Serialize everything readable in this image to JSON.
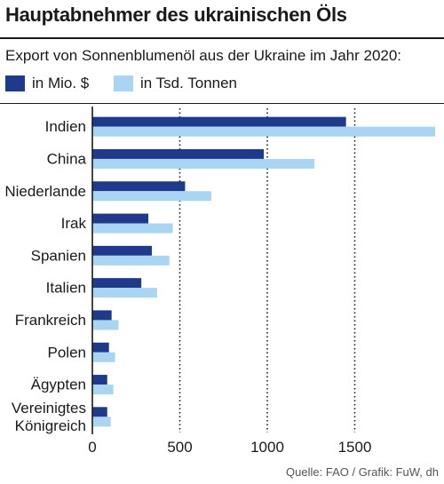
{
  "header": {
    "title": "Hauptabnehmer des ukrainischen Öls",
    "subtitle": "Export von Sonnenblumenöl aus der Ukraine im Jahr 2020:"
  },
  "source": "Quelle: FAO / Grafik: FuW, dh",
  "colors": {
    "dark": "#1f3a8a",
    "light": "#a9d5f2",
    "grid": "#1a1a1a"
  },
  "chart_data": {
    "type": "bar",
    "orientation": "horizontal",
    "title": "Hauptabnehmer des ukrainischen Öls",
    "subtitle": "Export von Sonnenblumenöl aus der Ukraine im Jahr 2020:",
    "categories": [
      "Indien",
      "China",
      "Niederlande",
      "Irak",
      "Spanien",
      "Italien",
      "Frankreich",
      "Polen",
      "Ägypten",
      "Vereinigtes Königreich"
    ],
    "category_lines": [
      [
        "Indien"
      ],
      [
        "China"
      ],
      [
        "Niederlande"
      ],
      [
        "Irak"
      ],
      [
        "Spanien"
      ],
      [
        "Italien"
      ],
      [
        "Frankreich"
      ],
      [
        "Polen"
      ],
      [
        "Ägypten"
      ],
      [
        "Vereinigtes",
        "Königreich"
      ]
    ],
    "series": [
      {
        "name": "in Mio. $",
        "color": "#1f3a8a",
        "values": [
          1450,
          980,
          530,
          320,
          340,
          280,
          110,
          95,
          85,
          85
        ]
      },
      {
        "name": "in Tsd. Tonnen",
        "color": "#a9d5f2",
        "values": [
          1960,
          1270,
          680,
          460,
          440,
          370,
          150,
          130,
          120,
          105
        ]
      }
    ],
    "xlim": [
      0,
      2000
    ],
    "xticks": [
      0,
      500,
      1000,
      1500
    ],
    "grid": "vertical dotted",
    "legend": "top-left"
  }
}
